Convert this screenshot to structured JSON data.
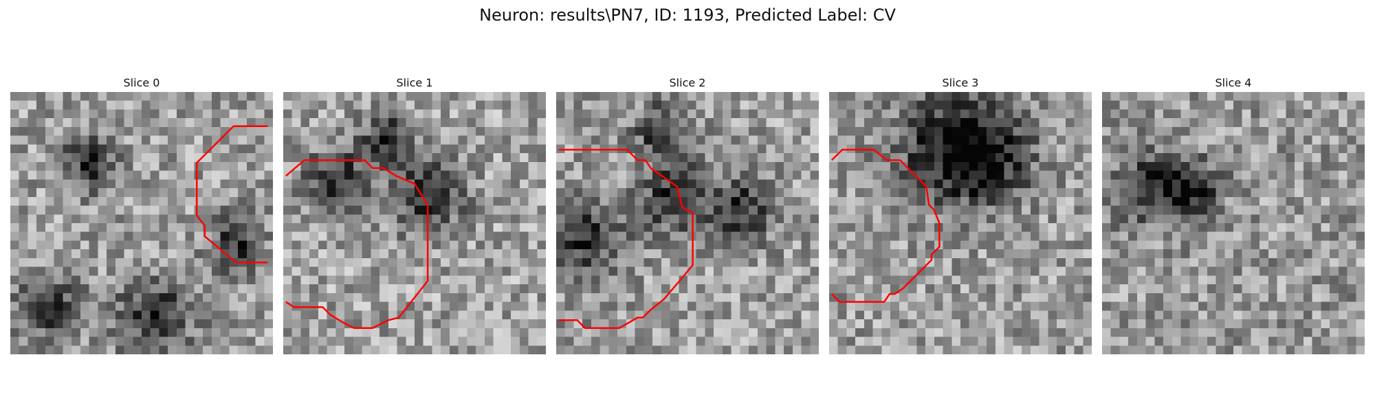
{
  "title": "Neuron: results\\PN7, ID: 1193, Predicted Label: CV",
  "contour_color": "#ff0000",
  "slices": [
    {
      "label": "Slice 0",
      "seed": 11,
      "dark_blobs": [
        [
          0.3,
          0.27,
          0.1
        ],
        [
          0.86,
          0.58,
          0.1
        ],
        [
          0.55,
          0.85,
          0.14
        ],
        [
          0.15,
          0.82,
          0.12
        ]
      ],
      "brightness": 0.62,
      "contour": [
        [
          0.98,
          0.13
        ],
        [
          0.85,
          0.13
        ],
        [
          0.71,
          0.27
        ],
        [
          0.71,
          0.47
        ],
        [
          0.74,
          0.51
        ],
        [
          0.74,
          0.55
        ],
        [
          0.86,
          0.65
        ],
        [
          0.98,
          0.65
        ]
      ]
    },
    {
      "label": "Slice 1",
      "seed": 23,
      "dark_blobs": [
        [
          0.2,
          0.33,
          0.12
        ],
        [
          0.55,
          0.4,
          0.14
        ],
        [
          0.4,
          0.18,
          0.1
        ]
      ],
      "brightness": 0.64,
      "contour": [
        [
          0.01,
          0.32
        ],
        [
          0.08,
          0.26
        ],
        [
          0.31,
          0.26
        ],
        [
          0.34,
          0.29
        ],
        [
          0.38,
          0.29
        ],
        [
          0.43,
          0.32
        ],
        [
          0.5,
          0.35
        ],
        [
          0.55,
          0.43
        ],
        [
          0.55,
          0.72
        ],
        [
          0.44,
          0.86
        ],
        [
          0.4,
          0.87
        ],
        [
          0.34,
          0.9
        ],
        [
          0.27,
          0.9
        ],
        [
          0.23,
          0.88
        ],
        [
          0.18,
          0.85
        ],
        [
          0.15,
          0.82
        ],
        [
          0.04,
          0.82
        ],
        [
          0.01,
          0.8
        ]
      ]
    },
    {
      "label": "Slice 2",
      "seed": 37,
      "dark_blobs": [
        [
          0.1,
          0.55,
          0.15
        ],
        [
          0.45,
          0.4,
          0.13
        ],
        [
          0.7,
          0.45,
          0.12
        ],
        [
          0.4,
          0.15,
          0.1
        ]
      ],
      "brightness": 0.62,
      "contour": [
        [
          0.01,
          0.22
        ],
        [
          0.27,
          0.22
        ],
        [
          0.31,
          0.26
        ],
        [
          0.34,
          0.26
        ],
        [
          0.36,
          0.29
        ],
        [
          0.46,
          0.36
        ],
        [
          0.48,
          0.44
        ],
        [
          0.52,
          0.46
        ],
        [
          0.52,
          0.66
        ],
        [
          0.47,
          0.72
        ],
        [
          0.41,
          0.79
        ],
        [
          0.36,
          0.83
        ],
        [
          0.33,
          0.86
        ],
        [
          0.31,
          0.86
        ],
        [
          0.24,
          0.9
        ],
        [
          0.11,
          0.9
        ],
        [
          0.08,
          0.87
        ],
        [
          0.01,
          0.87
        ]
      ]
    },
    {
      "label": "Slice 3",
      "seed": 53,
      "dark_blobs": [
        [
          0.45,
          0.2,
          0.2
        ],
        [
          0.6,
          0.25,
          0.18
        ]
      ],
      "brightness": 0.62,
      "contour": [
        [
          0.01,
          0.26
        ],
        [
          0.05,
          0.22
        ],
        [
          0.17,
          0.22
        ],
        [
          0.22,
          0.26
        ],
        [
          0.27,
          0.26
        ],
        [
          0.34,
          0.33
        ],
        [
          0.37,
          0.36
        ],
        [
          0.38,
          0.43
        ],
        [
          0.4,
          0.45
        ],
        [
          0.42,
          0.5
        ],
        [
          0.42,
          0.59
        ],
        [
          0.39,
          0.62
        ],
        [
          0.39,
          0.64
        ],
        [
          0.33,
          0.7
        ],
        [
          0.28,
          0.75
        ],
        [
          0.25,
          0.77
        ],
        [
          0.23,
          0.77
        ],
        [
          0.21,
          0.8
        ],
        [
          0.04,
          0.8
        ],
        [
          0.01,
          0.77
        ]
      ]
    },
    {
      "label": "Slice 4",
      "seed": 71,
      "dark_blobs": [
        [
          0.18,
          0.37,
          0.13
        ],
        [
          0.35,
          0.37,
          0.1
        ]
      ],
      "brightness": 0.6,
      "contour": []
    }
  ]
}
